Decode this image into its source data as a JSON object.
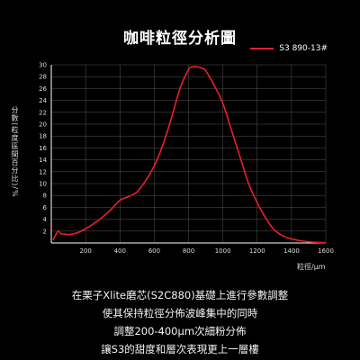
{
  "header": {
    "title": "咖啡粒徑分析圖"
  },
  "description": [
    "在栗子Xlite磨芯(S2C880)基礎上進行參數調整",
    "使其保持粒徑分佈波峰集中的同時",
    "調整200-400μm次細粉分佈",
    "讓S3的甜度和層次表現更上一層樓"
  ],
  "colors": {
    "series": "#e8202a",
    "background": "#000000",
    "axis": "#ffffff"
  },
  "chart_data": {
    "type": "line",
    "title": "咖啡粒徑分析圖",
    "xlabel": "粒徑/μm",
    "ylabel": "分數(粒度區間百分比)/%",
    "xlim": [
      0,
      1600
    ],
    "ylim": [
      0,
      30
    ],
    "xticks": [
      200,
      400,
      600,
      800,
      1000,
      1200,
      1400,
      1600
    ],
    "yticks": [
      2,
      4,
      6,
      8,
      10,
      12,
      14,
      16,
      18,
      20,
      22,
      24,
      26,
      28,
      30
    ],
    "grid": true,
    "legend_position": "top-right",
    "series": [
      {
        "name": "S3 890-13#",
        "color": "#e8202a",
        "x": [
          10,
          25,
          40,
          55,
          70,
          85,
          100,
          150,
          200,
          250,
          300,
          350,
          400,
          450,
          500,
          550,
          600,
          650,
          700,
          750,
          800,
          820,
          840,
          860,
          880,
          900,
          950,
          1000,
          1050,
          1100,
          1150,
          1200,
          1250,
          1300,
          1350,
          1400,
          1450,
          1500,
          1550,
          1600
        ],
        "y": [
          0.5,
          1.3,
          2.0,
          1.6,
          1.5,
          1.5,
          1.4,
          1.7,
          2.4,
          3.3,
          4.4,
          5.7,
          7.2,
          7.8,
          8.6,
          10.5,
          13.0,
          16.5,
          21.0,
          26.0,
          29.2,
          29.6,
          29.7,
          29.6,
          29.4,
          29.0,
          26.5,
          23.5,
          19.0,
          14.5,
          10.0,
          6.8,
          4.2,
          2.2,
          1.2,
          0.7,
          0.4,
          0.2,
          0.1,
          0.05
        ]
      }
    ]
  }
}
